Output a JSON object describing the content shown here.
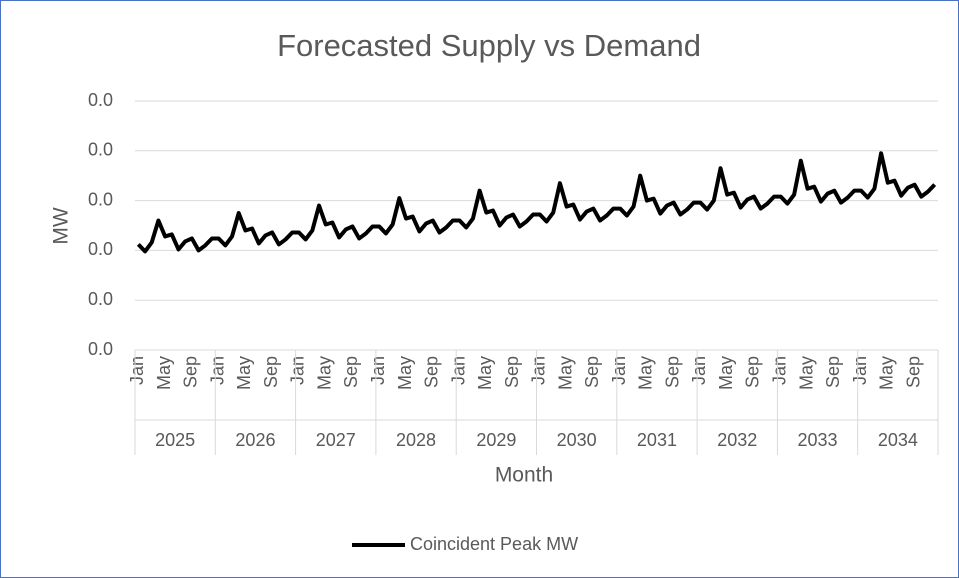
{
  "chart_data": {
    "type": "line",
    "title": "Forecasted Supply vs Demand",
    "x_label": "Month",
    "y_label": "MW",
    "categories": [
      "Jan",
      null,
      null,
      null,
      "May",
      null,
      null,
      null,
      "Sep",
      null,
      null,
      null,
      "Jan",
      null,
      null,
      null,
      "May",
      null,
      null,
      null,
      "Sep",
      null,
      null,
      null,
      "Jan",
      null,
      null,
      null,
      "May",
      null,
      null,
      null,
      "Sep",
      null,
      null,
      null,
      "Jan",
      null,
      null,
      null,
      "May",
      null,
      null,
      null,
      "Sep",
      null,
      null,
      null,
      "Jan",
      null,
      null,
      null,
      "May",
      null,
      null,
      null,
      "Sep",
      null,
      null,
      null,
      "Jan",
      null,
      null,
      null,
      "May",
      null,
      null,
      null,
      "Sep",
      null,
      null,
      null,
      "Jan",
      null,
      null,
      null,
      "May",
      null,
      null,
      null,
      "Sep",
      null,
      null,
      null,
      "Jan",
      null,
      null,
      null,
      "May",
      null,
      null,
      null,
      "Sep",
      null,
      null,
      null,
      "Jan",
      null,
      null,
      null,
      "May",
      null,
      null,
      null,
      "Sep",
      null,
      null,
      null,
      "Jan",
      null,
      null,
      null,
      "May",
      null,
      null,
      null,
      "Sep",
      null,
      null,
      null
    ],
    "groups": [
      "2025",
      "2026",
      "2027",
      "2028",
      "2029",
      "2030",
      "2031",
      "2032",
      "2033",
      "2034"
    ],
    "series": [
      {
        "name": "Coincident Peak MW",
        "color": "#000000",
        "values": [
          0.0212,
          0.0198,
          0.0216,
          0.026,
          0.0228,
          0.0232,
          0.0202,
          0.0218,
          0.0224,
          0.02,
          0.021,
          0.0224,
          0.0224,
          0.021,
          0.0228,
          0.0275,
          0.024,
          0.0244,
          0.0214,
          0.023,
          0.0236,
          0.0212,
          0.0222,
          0.0236,
          0.0236,
          0.0222,
          0.024,
          0.029,
          0.0252,
          0.0256,
          0.0226,
          0.0242,
          0.0248,
          0.0224,
          0.0234,
          0.0248,
          0.0248,
          0.0234,
          0.0252,
          0.0305,
          0.0264,
          0.0268,
          0.0238,
          0.0254,
          0.026,
          0.0236,
          0.0246,
          0.026,
          0.026,
          0.0246,
          0.0264,
          0.032,
          0.0276,
          0.028,
          0.025,
          0.0266,
          0.0272,
          0.0248,
          0.0258,
          0.0272,
          0.0272,
          0.0258,
          0.0276,
          0.0335,
          0.0288,
          0.0292,
          0.0262,
          0.0278,
          0.0284,
          0.026,
          0.027,
          0.0284,
          0.0284,
          0.027,
          0.0288,
          0.035,
          0.03,
          0.0304,
          0.0274,
          0.029,
          0.0296,
          0.0272,
          0.0282,
          0.0296,
          0.0296,
          0.0282,
          0.03,
          0.0365,
          0.0312,
          0.0316,
          0.0286,
          0.0302,
          0.0308,
          0.0284,
          0.0294,
          0.0308,
          0.0308,
          0.0294,
          0.0312,
          0.038,
          0.0324,
          0.0328,
          0.0298,
          0.0314,
          0.032,
          0.0296,
          0.0306,
          0.032,
          0.032,
          0.0306,
          0.0324,
          0.0395,
          0.0336,
          0.034,
          0.031,
          0.0326,
          0.0332,
          0.0308,
          0.0318,
          0.0332
        ]
      }
    ],
    "ylim": [
      0,
      0.05
    ],
    "yticks": [
      {
        "value": 0,
        "label": "0.0"
      },
      {
        "value": 0.01,
        "label": "0.0"
      },
      {
        "value": 0.02,
        "label": "0.0"
      },
      {
        "value": 0.03,
        "label": "0.0"
      },
      {
        "value": 0.04,
        "label": "0.0"
      },
      {
        "value": 0.05,
        "label": "0.0"
      }
    ],
    "grid": true,
    "legend": "bottom"
  }
}
